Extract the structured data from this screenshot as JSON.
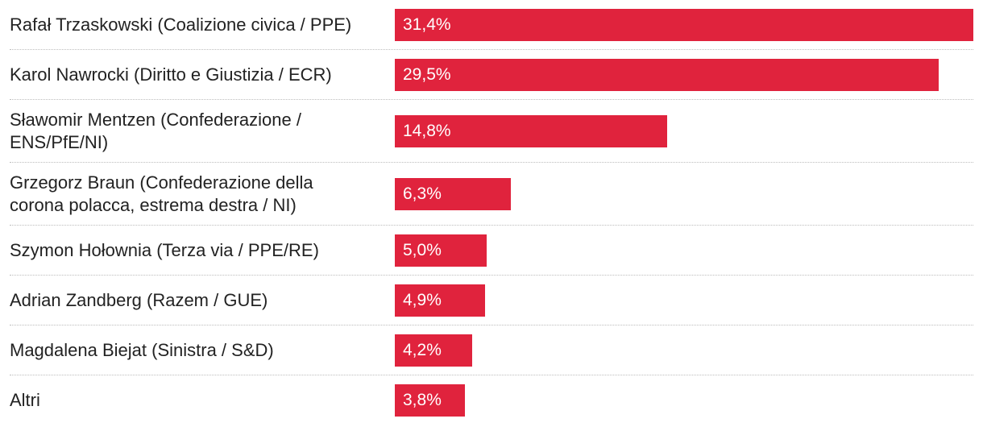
{
  "chart_data": {
    "type": "bar",
    "orientation": "horizontal",
    "bar_color": "#e0233d",
    "xlim": [
      0,
      31.4
    ],
    "categories": [
      "Rafał Trzaskowski (Coalizione civica / PPE)",
      "Karol Nawrocki (Diritto e Giustizia / ECR)",
      "Sławomir Mentzen (Confederazione / ENS/PfE/NI)",
      "Grzegorz Braun (Confederazione della corona polacca, estrema destra / NI)",
      "Szymon Hołownia (Terza via / PPE/RE)",
      "Adrian Zandberg (Razem / GUE)",
      "Magdalena Biejat (Sinistra / S&D)",
      "Altri"
    ],
    "values": [
      31.4,
      29.5,
      14.8,
      6.3,
      5.0,
      4.9,
      4.2,
      3.8
    ],
    "value_labels": [
      "31,4%",
      "29,5%",
      "14,8%",
      "6,3%",
      "5,0%",
      "4,9%",
      "4,2%",
      "3,8%"
    ]
  }
}
